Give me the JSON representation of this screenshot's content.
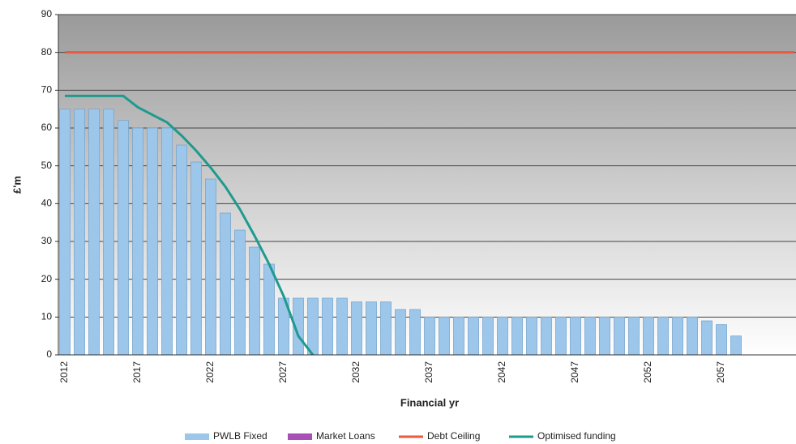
{
  "chart_data": {
    "type": "bar",
    "x_label": "Financial yr",
    "y_label": "£'m",
    "categories": [
      "2012",
      null,
      null,
      null,
      null,
      "2017",
      null,
      null,
      null,
      null,
      "2022",
      null,
      null,
      null,
      null,
      "2027",
      null,
      null,
      null,
      null,
      "2032",
      null,
      null,
      null,
      null,
      "2037",
      null,
      null,
      null,
      null,
      "2042",
      null,
      null,
      null,
      null,
      "2047",
      null,
      null,
      null,
      null,
      "2052",
      null,
      null,
      null,
      null,
      "2057",
      null,
      null,
      null,
      null,
      null
    ],
    "series": [
      {
        "name": "PWLB Fixed",
        "color": "#9cc6ea",
        "kind": "bar",
        "values": [
          65,
          65,
          65,
          65,
          62,
          60,
          60,
          60,
          55.5,
          51,
          46.5,
          37.5,
          33,
          28.5,
          24,
          15,
          15,
          15,
          15,
          15,
          14,
          14,
          14,
          12,
          12,
          10,
          10,
          10,
          10,
          10,
          10,
          10,
          10,
          10,
          10,
          10,
          10,
          10,
          10,
          10,
          10,
          10,
          10,
          10,
          9,
          8,
          5,
          null,
          null,
          null,
          null
        ]
      },
      {
        "name": "Market Loans",
        "color": "#a850b8",
        "kind": "bar",
        "values": [
          0,
          0,
          0,
          0,
          0,
          0,
          0,
          0,
          0,
          0,
          0,
          0,
          0,
          0,
          0,
          0,
          0,
          0,
          0,
          0,
          0,
          0,
          0,
          0,
          0,
          0,
          0,
          0,
          0,
          0,
          0,
          0,
          0,
          0,
          0,
          0,
          0,
          0,
          0,
          0,
          0,
          0,
          0,
          0,
          0,
          0,
          0,
          null,
          null,
          null,
          null
        ]
      },
      {
        "name": "Debt Ceiling",
        "color": "#ea5a3c",
        "kind": "line",
        "values": [
          80,
          80,
          80,
          80,
          80,
          80,
          80,
          80,
          80,
          80,
          80,
          80,
          80,
          80,
          80,
          80,
          80,
          80,
          80,
          80,
          80,
          80,
          80,
          80,
          80,
          80,
          80,
          80,
          80,
          80,
          80,
          80,
          80,
          80,
          80,
          80,
          80,
          80,
          80,
          80,
          80,
          80,
          80,
          80,
          80,
          80,
          80,
          80,
          80,
          80,
          80
        ]
      },
      {
        "name": "Optimised funding",
        "color": "#1f9a8e",
        "kind": "line",
        "values": [
          68.5,
          68.5,
          68.5,
          68.5,
          68.5,
          65.5,
          63.5,
          61.5,
          58,
          54,
          49.5,
          44.5,
          38.5,
          31.5,
          24,
          15.5,
          5,
          0,
          null,
          null,
          null,
          null,
          null,
          null,
          null,
          null,
          null,
          null,
          null,
          null,
          null,
          null,
          null,
          null,
          null,
          null,
          null,
          null,
          null,
          null,
          null,
          null,
          null,
          null,
          null,
          null,
          null,
          null,
          null,
          null,
          null
        ]
      }
    ],
    "ylim": [
      0,
      90
    ],
    "yticks": [
      0,
      10,
      20,
      30,
      40,
      50,
      60,
      70,
      80,
      90
    ],
    "grid": true
  }
}
